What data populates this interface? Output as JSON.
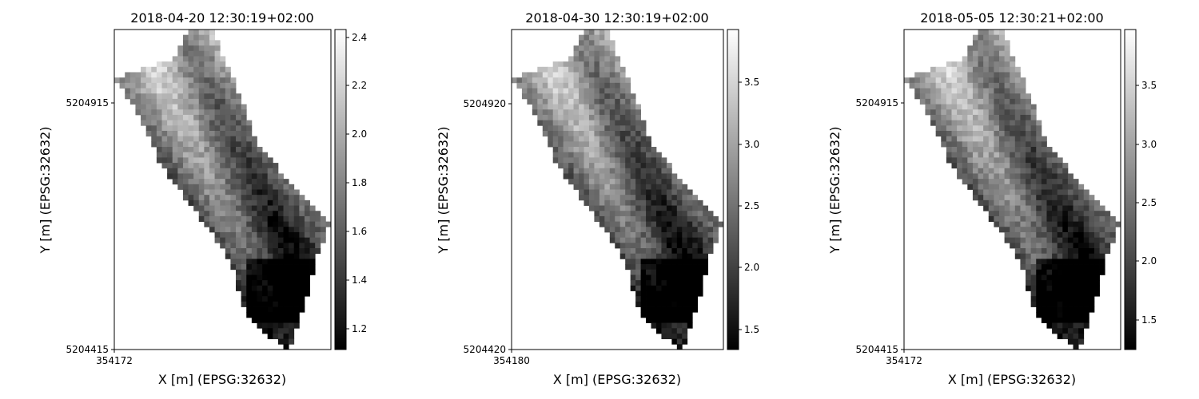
{
  "figure": {
    "panels": [
      {
        "title": "2018-04-20 12:30:19+02:00",
        "xlabel": "X [m] (EPSG:32632)",
        "ylabel": "Y [m] (EPSG:32632)",
        "xticks": [
          "354172"
        ],
        "yticks": [
          "5204915",
          "5204415"
        ],
        "colorbar": {
          "min": 1.1,
          "max": 2.44,
          "ticks": [
            "1.2",
            "1.4",
            "1.6",
            "1.8",
            "2.0",
            "2.2",
            "2.4"
          ]
        }
      },
      {
        "title": "2018-04-30 12:30:19+02:00",
        "xlabel": "X [m] (EPSG:32632)",
        "ylabel": "Y [m] (EPSG:32632)",
        "xticks": [
          "354180"
        ],
        "yticks": [
          "5204920",
          "5204420"
        ],
        "colorbar": {
          "min": 1.33,
          "max": 3.93,
          "ticks": [
            "1.5",
            "2.0",
            "2.5",
            "3.0",
            "3.5"
          ]
        }
      },
      {
        "title": "2018-05-05 12:30:21+02:00",
        "xlabel": "X [m] (EPSG:32632)",
        "ylabel": "Y [m] (EPSG:32632)",
        "xticks": [
          "354172"
        ],
        "yticks": [
          "5204915",
          "5204415"
        ],
        "colorbar": {
          "min": 1.23,
          "max": 3.93,
          "ticks": [
            "1.5",
            "2.0",
            "2.5",
            "3.0",
            "3.5"
          ]
        }
      }
    ]
  },
  "chart_data": [
    {
      "type": "heatmap",
      "colormap": "gray",
      "title": "2018-04-20 12:30:19+02:00",
      "xlabel": "X [m] (EPSG:32632)",
      "ylabel": "Y [m] (EPSG:32632)",
      "x_ticks": [
        354172
      ],
      "y_ticks": [
        5204915,
        5204415
      ],
      "value_range": [
        1.1,
        2.44
      ],
      "colorbar_ticks": [
        1.2,
        1.4,
        1.6,
        1.8,
        2.0,
        2.2,
        2.4
      ]
    },
    {
      "type": "heatmap",
      "colormap": "gray",
      "title": "2018-04-30 12:30:19+02:00",
      "xlabel": "X [m] (EPSG:32632)",
      "ylabel": "Y [m] (EPSG:32632)",
      "x_ticks": [
        354180
      ],
      "y_ticks": [
        5204920,
        5204420
      ],
      "value_range": [
        1.33,
        3.93
      ],
      "colorbar_ticks": [
        1.5,
        2.0,
        2.5,
        3.0,
        3.5
      ]
    },
    {
      "type": "heatmap",
      "colormap": "gray",
      "title": "2018-05-05 12:30:21+02:00",
      "xlabel": "X [m] (EPSG:32632)",
      "ylabel": "Y [m] (EPSG:32632)",
      "x_ticks": [
        354172
      ],
      "y_ticks": [
        5204915,
        5204415
      ],
      "value_range": [
        1.23,
        3.93
      ],
      "colorbar_ticks": [
        1.5,
        2.0,
        2.5,
        3.0,
        3.5
      ]
    }
  ]
}
